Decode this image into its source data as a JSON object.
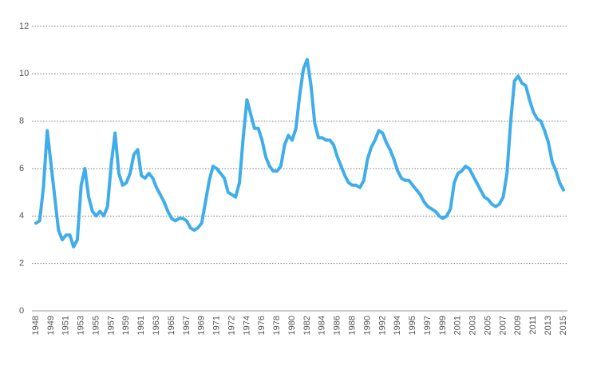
{
  "chart_data": {
    "type": "line",
    "categories": [
      "1948",
      null,
      null,
      null,
      "1949",
      null,
      null,
      null,
      "1951",
      null,
      null,
      null,
      "1953",
      null,
      null,
      null,
      "1955",
      null,
      null,
      null,
      "1957",
      null,
      null,
      null,
      "1959",
      null,
      null,
      null,
      "1961",
      null,
      null,
      null,
      "1963",
      null,
      null,
      null,
      "1965",
      null,
      null,
      null,
      "1967",
      null,
      null,
      null,
      "1969",
      null,
      null,
      null,
      "1971",
      null,
      null,
      null,
      "1972",
      null,
      null,
      null,
      "1974",
      null,
      null,
      null,
      "1976",
      null,
      null,
      null,
      "1978",
      null,
      null,
      null,
      "1980",
      null,
      null,
      null,
      "1982",
      null,
      null,
      null,
      "1984",
      null,
      null,
      null,
      "1986",
      null,
      null,
      null,
      "1988",
      null,
      null,
      null,
      "1990",
      null,
      null,
      null,
      "1992",
      null,
      null,
      null,
      "1994",
      null,
      null,
      null,
      "1995",
      null,
      null,
      null,
      "1997",
      null,
      null,
      null,
      "1999",
      null,
      null,
      null,
      "2001",
      null,
      null,
      null,
      "2003",
      null,
      null,
      null,
      "2005",
      null,
      null,
      null,
      "2007",
      null,
      null,
      null,
      "2009",
      null,
      null,
      null,
      "2011",
      null,
      null,
      null,
      "2013",
      null,
      null,
      null,
      "2015"
    ],
    "values": [
      3.7,
      3.8,
      5.2,
      7.6,
      6.2,
      4.8,
      3.4,
      3.0,
      3.2,
      3.2,
      2.7,
      3.0,
      5.3,
      6.0,
      4.8,
      4.2,
      4.0,
      4.2,
      4.0,
      4.4,
      6.2,
      7.5,
      5.8,
      5.3,
      5.4,
      5.8,
      6.6,
      6.8,
      5.7,
      5.6,
      5.8,
      5.6,
      5.2,
      4.9,
      4.6,
      4.2,
      3.9,
      3.8,
      3.9,
      3.9,
      3.8,
      3.5,
      3.4,
      3.5,
      3.7,
      4.6,
      5.5,
      6.1,
      6.0,
      5.8,
      5.6,
      5.0,
      4.9,
      4.8,
      5.4,
      7.3,
      8.9,
      8.3,
      7.7,
      7.7,
      7.2,
      6.5,
      6.1,
      5.9,
      5.9,
      6.1,
      7.0,
      7.4,
      7.2,
      7.7,
      9.1,
      10.2,
      10.6,
      9.5,
      7.9,
      7.3,
      7.3,
      7.2,
      7.2,
      7.0,
      6.5,
      6.1,
      5.7,
      5.4,
      5.3,
      5.3,
      5.2,
      5.5,
      6.4,
      6.9,
      7.2,
      7.6,
      7.5,
      7.1,
      6.8,
      6.4,
      5.9,
      5.6,
      5.5,
      5.5,
      5.3,
      5.1,
      4.9,
      4.6,
      4.4,
      4.3,
      4.2,
      4.0,
      3.9,
      4.0,
      4.3,
      5.4,
      5.8,
      5.9,
      6.1,
      6.0,
      5.7,
      5.4,
      5.1,
      4.8,
      4.7,
      4.5,
      4.4,
      4.5,
      4.8,
      5.8,
      8.0,
      9.7,
      9.9,
      9.6,
      9.5,
      8.9,
      8.4,
      8.1,
      8.0,
      7.6,
      7.1,
      6.3,
      5.9,
      5.4,
      5.1
    ],
    "color": "#3fadea",
    "ylim": [
      0,
      12
    ],
    "yticks": [
      0,
      2,
      4,
      6,
      8,
      10,
      12
    ],
    "grid": true
  }
}
